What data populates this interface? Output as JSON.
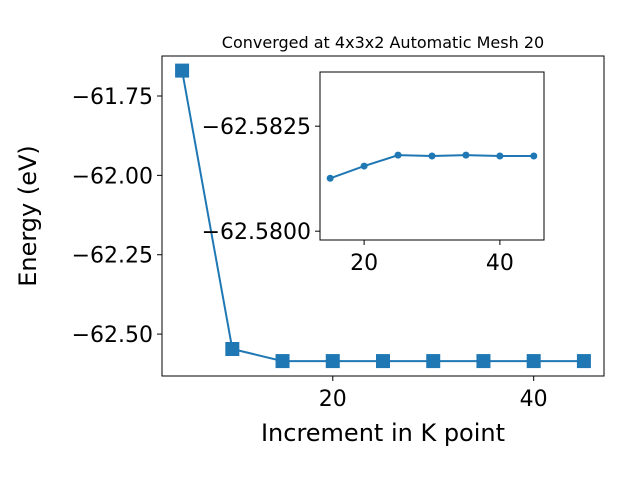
{
  "chart_data": [
    {
      "type": "line",
      "title": "Converged at 4x3x2 Automatic Mesh 20",
      "x_label": "Increment in K point",
      "y_label": "Energy (eV)",
      "x": [
        5,
        10,
        15,
        20,
        25,
        30,
        35,
        40,
        45
      ],
      "series": [
        {
          "color": "#1f77b4",
          "marker": "square",
          "values": [
            -61.67,
            -62.547,
            -62.585,
            -62.585,
            -62.585,
            -62.585,
            -62.585,
            -62.585,
            -62.585
          ]
        }
      ],
      "xlim": [
        3,
        47
      ],
      "xticks": [
        20,
        40
      ],
      "ylim": [
        -62.632,
        -61.624
      ],
      "yticks": [
        {
          "value": -61.75,
          "label": "−61.75"
        },
        {
          "value": -62.0,
          "label": "−62.00"
        },
        {
          "value": -62.25,
          "label": "−62.25"
        },
        {
          "value": -62.5,
          "label": "−62.50"
        }
      ]
    },
    {
      "type": "line",
      "x": [
        15,
        20,
        25,
        30,
        35,
        40,
        45
      ],
      "series": [
        {
          "color": "#1f77b4",
          "marker": "circle",
          "values": [
            -62.58126,
            -62.58155,
            -62.58181,
            -62.58179,
            -62.58181,
            -62.58179,
            -62.58179
          ]
        }
      ],
      "xlim": [
        13.5,
        46.5
      ],
      "xticks": [
        20,
        40
      ],
      "ylim": [
        -62.57979,
        -62.58379
      ],
      "yticks": [
        {
          "value": -62.5825,
          "label": "−62.5825"
        },
        {
          "value": -62.58,
          "label": "−62.5800"
        }
      ]
    }
  ]
}
